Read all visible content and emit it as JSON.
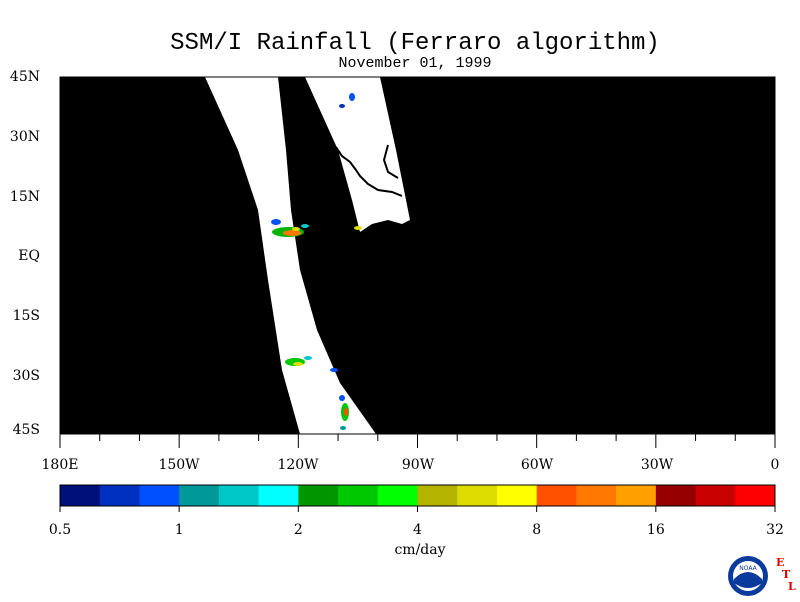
{
  "title": "SSM/I Rainfall (Ferraro algorithm)",
  "subtitle": "November 01, 1999",
  "lat_labels": [
    "45N",
    "30N",
    "15N",
    "EQ",
    "15S",
    "30S",
    "45S"
  ],
  "lon_labels": [
    "180E",
    "150W",
    "120W",
    "90W",
    "60W",
    "30W",
    "0"
  ],
  "colorbar": {
    "labels": [
      "0.5",
      "1",
      "2",
      "4",
      "8",
      "16",
      "32"
    ],
    "unit": "cm/day",
    "colors": [
      "#00107a",
      "#0030c0",
      "#0050ff",
      "#009898",
      "#00c8c8",
      "#00ffff",
      "#009600",
      "#00c800",
      "#00ff00",
      "#b4b400",
      "#dcdc00",
      "#ffff00",
      "#ff5000",
      "#ff7800",
      "#ffa000",
      "#960000",
      "#c80000",
      "#ff0000"
    ]
  },
  "logo": {
    "icon": "noaa-logo",
    "text": "NOAA",
    "letters": [
      "E",
      "T",
      "L"
    ]
  }
}
